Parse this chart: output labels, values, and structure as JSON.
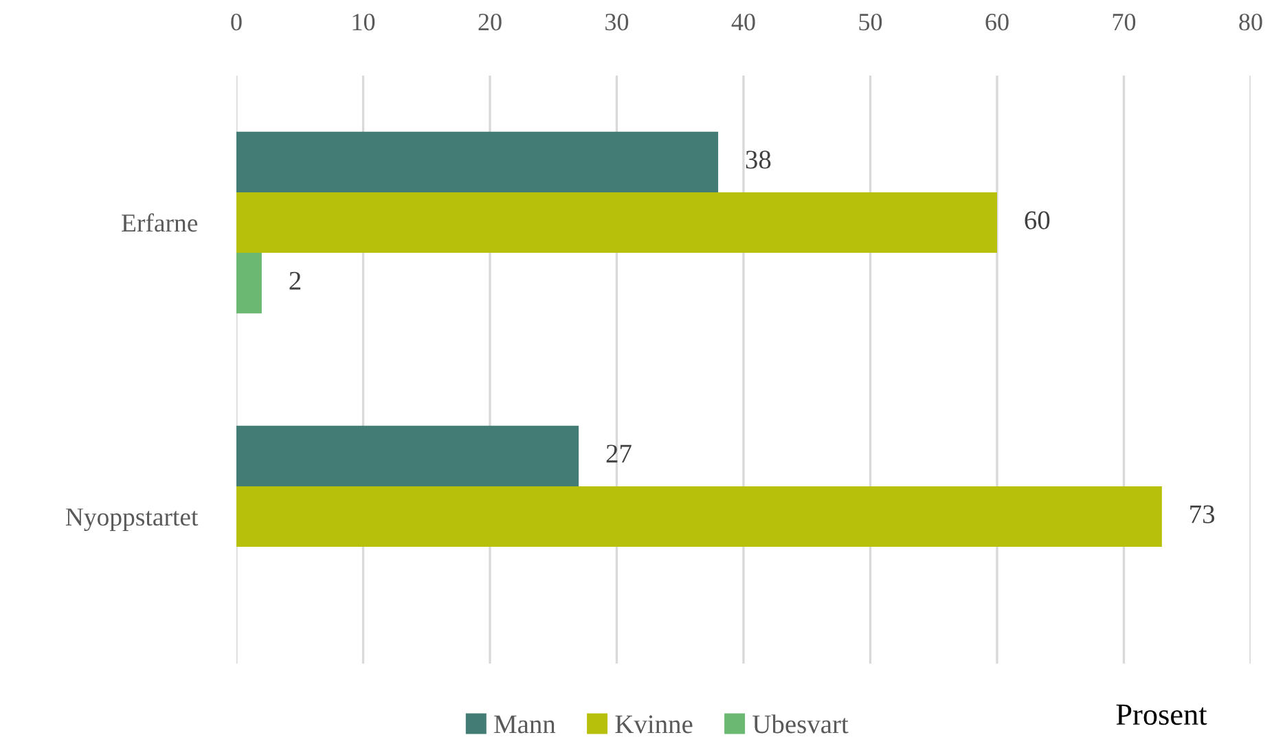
{
  "chart_data": {
    "type": "bar",
    "orientation": "horizontal",
    "categories": [
      "Erfarne",
      "Nyoppstartet"
    ],
    "series": [
      {
        "name": "Mann",
        "color": "#437c74",
        "values": [
          38,
          27
        ]
      },
      {
        "name": "Kvinne",
        "color": "#b7c00a",
        "values": [
          60,
          73
        ]
      },
      {
        "name": "Ubesvart",
        "color": "#6bb872",
        "values": [
          2,
          null
        ]
      }
    ],
    "xlabel": "Prosent",
    "xlim": [
      0,
      80
    ],
    "xticks": [
      0,
      10,
      20,
      30,
      40,
      50,
      60,
      70,
      80
    ],
    "grid": "x",
    "legend": "bottom",
    "data_labels": true
  }
}
